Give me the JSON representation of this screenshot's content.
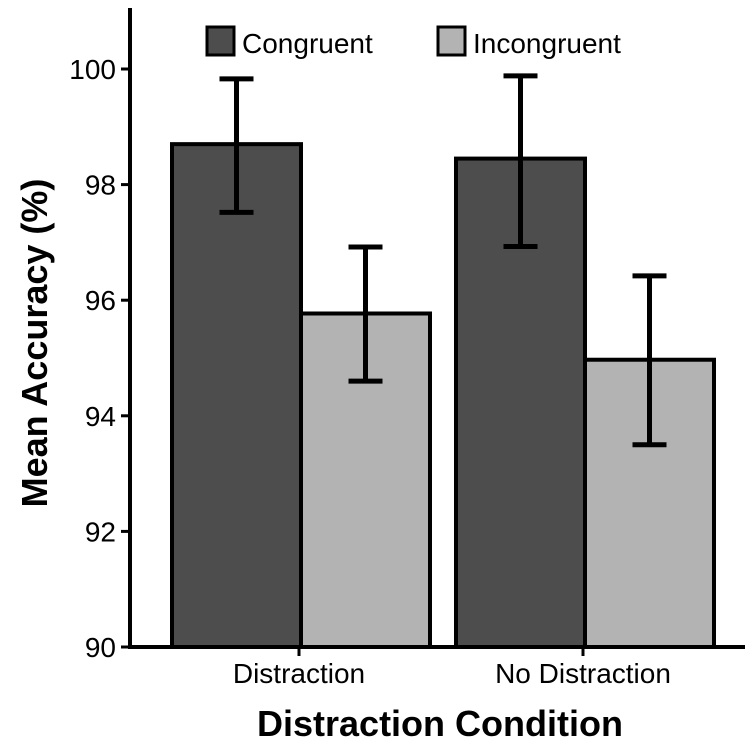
{
  "chart_data": {
    "type": "bar",
    "categories": [
      "Distraction",
      "No Distraction"
    ],
    "series": [
      {
        "name": "Congruent",
        "color": "#4d4d4d",
        "values": [
          98.7,
          98.45
        ],
        "error_low": [
          97.52,
          96.93
        ],
        "error_high": [
          99.83,
          99.88
        ]
      },
      {
        "name": "Incongruent",
        "color": "#b3b3b3",
        "values": [
          95.77,
          94.97
        ],
        "error_low": [
          94.6,
          93.5
        ],
        "error_high": [
          96.92,
          96.42
        ]
      }
    ],
    "xlabel": "Distraction Condition",
    "ylabel": "Mean Accuracy (%)",
    "ylim": [
      90,
      101
    ],
    "yticks": [
      90,
      92,
      94,
      96,
      98,
      100
    ],
    "grid": false,
    "legend_position": "top"
  }
}
